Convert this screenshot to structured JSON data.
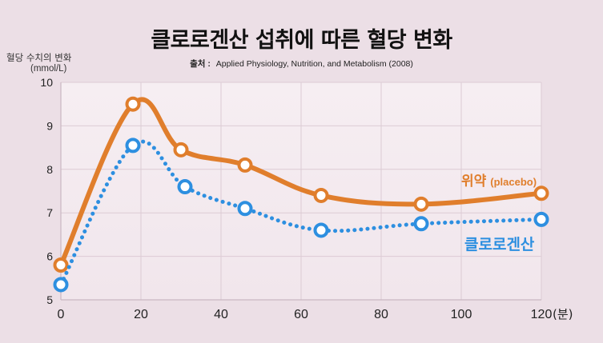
{
  "title": "클로로겐산 섭취에 따른 혈당 변화",
  "source_label": "출처 :",
  "source_text": "Applied Physiology, Nutrition, and Metabolism (2008)",
  "y_axis_label": "혈당 수치의 변화",
  "y_axis_unit": "(mmol/L)",
  "x_unit": "(분)",
  "chart_data": {
    "type": "line",
    "title": "클로로겐산 섭취에 따른 혈당 변화",
    "xlabel": "(분)",
    "ylabel": "혈당 수치의 변화 (mmol/L)",
    "xlim": [
      0,
      120
    ],
    "ylim": [
      5,
      10
    ],
    "x_ticks": [
      0,
      20,
      40,
      60,
      80,
      100,
      120
    ],
    "y_ticks": [
      5,
      6,
      7,
      8,
      9,
      10
    ],
    "grid": true,
    "series": [
      {
        "name": "위약",
        "name_sub": "(placebo)",
        "color": "#e07e2c",
        "style": "solid",
        "x": [
          0,
          18,
          30,
          46,
          65,
          90,
          120
        ],
        "values": [
          5.8,
          9.5,
          8.45,
          8.1,
          7.4,
          7.2,
          7.45
        ]
      },
      {
        "name": "클로로겐산",
        "color": "#2d8fe0",
        "style": "dotted",
        "x": [
          0,
          18,
          31,
          46,
          65,
          90,
          120
        ],
        "values": [
          5.35,
          8.55,
          7.6,
          7.1,
          6.6,
          6.75,
          6.85
        ]
      }
    ]
  }
}
